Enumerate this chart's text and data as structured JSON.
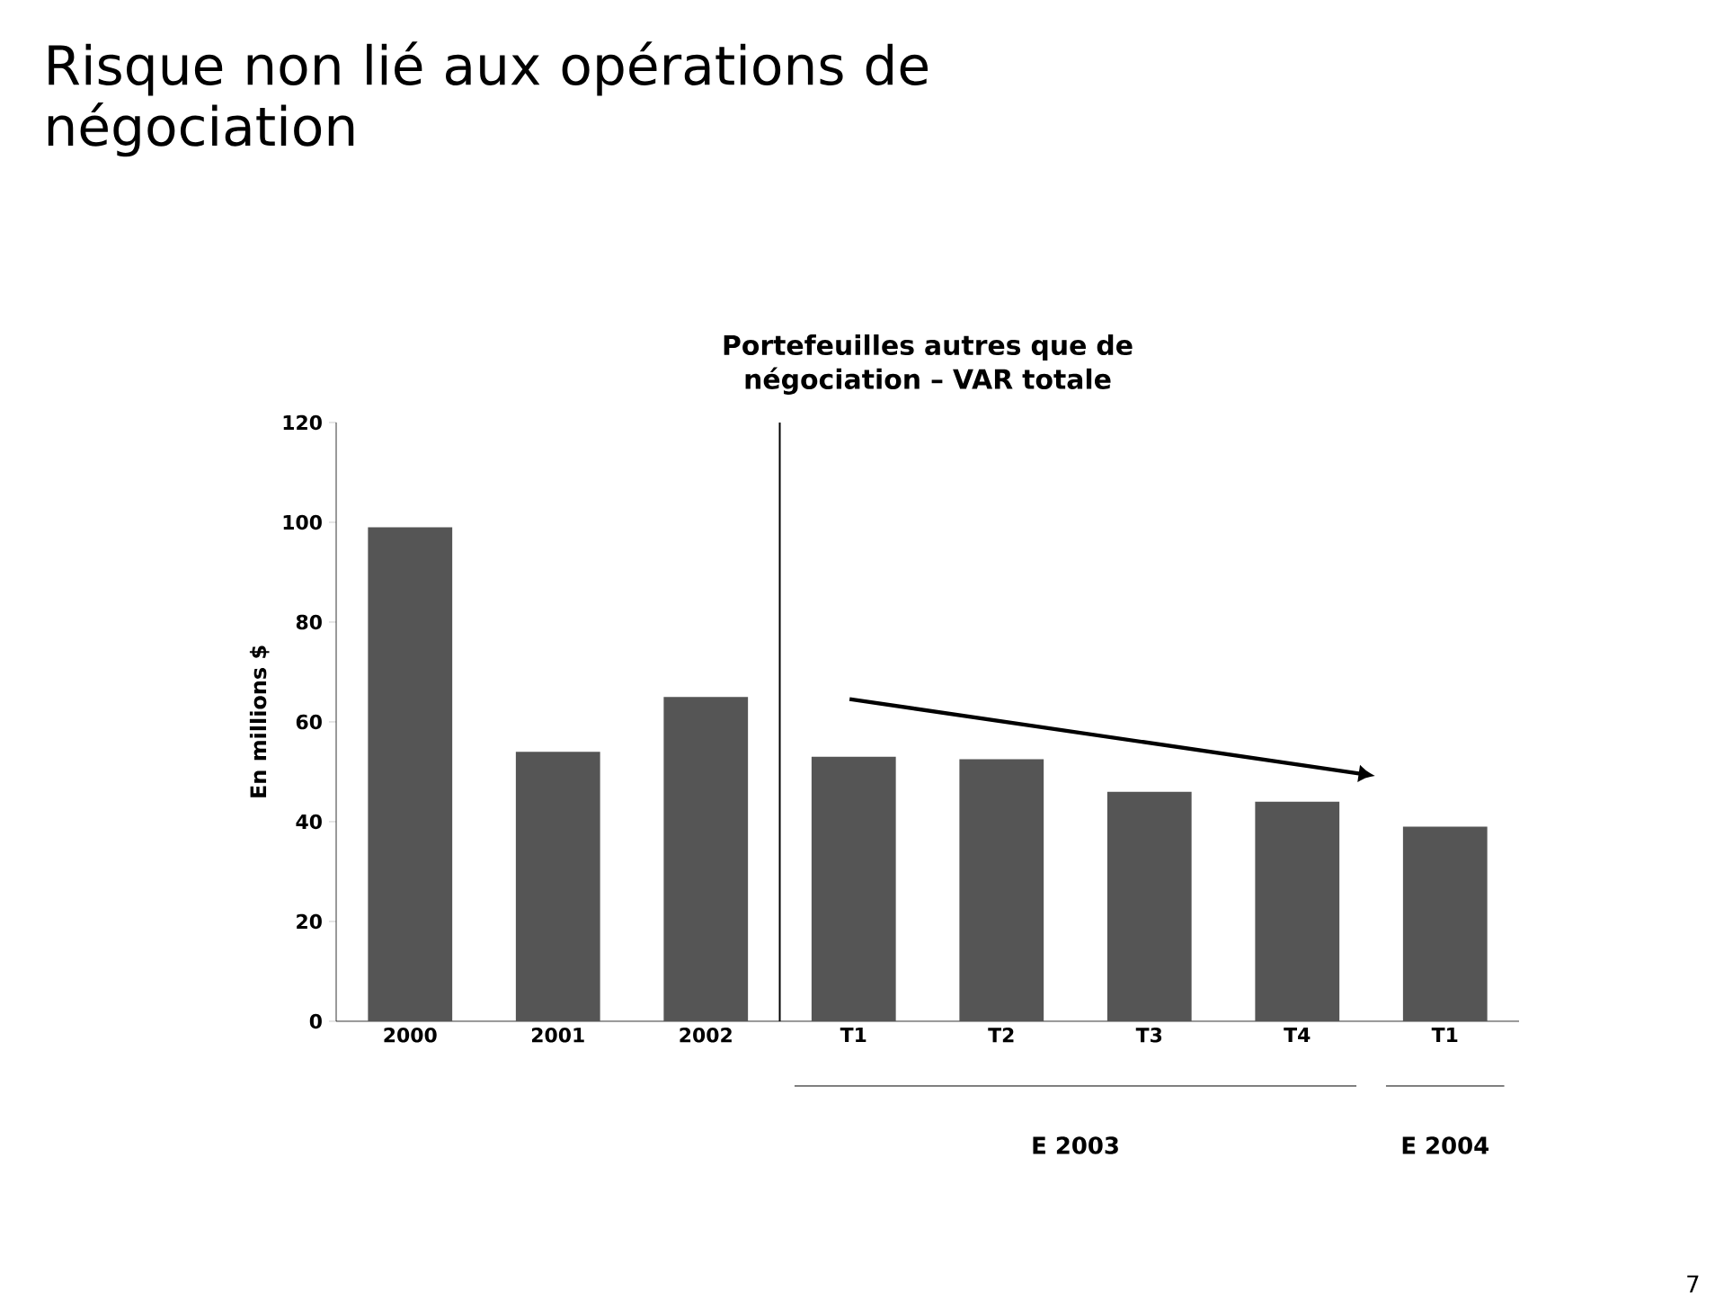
{
  "chart_data": {
    "type": "bar",
    "title": "Risque non lié aux opérations de négociation",
    "subtitle": "Portefeuilles autres que de négociation – VAR totale",
    "ylabel": "En millions $",
    "categories": [
      "2000",
      "2001",
      "2002",
      "T1",
      "T2",
      "T3",
      "T4",
      "T1"
    ],
    "values": [
      99,
      54,
      65,
      53,
      52.5,
      46,
      44,
      39
    ],
    "color": "#555555",
    "ylim": [
      0,
      120
    ],
    "yticks": [
      0,
      20,
      40,
      60,
      80,
      100,
      120
    ],
    "grid": false,
    "annotations": [
      "E 2003",
      "E 2004",
      "7"
    ]
  }
}
